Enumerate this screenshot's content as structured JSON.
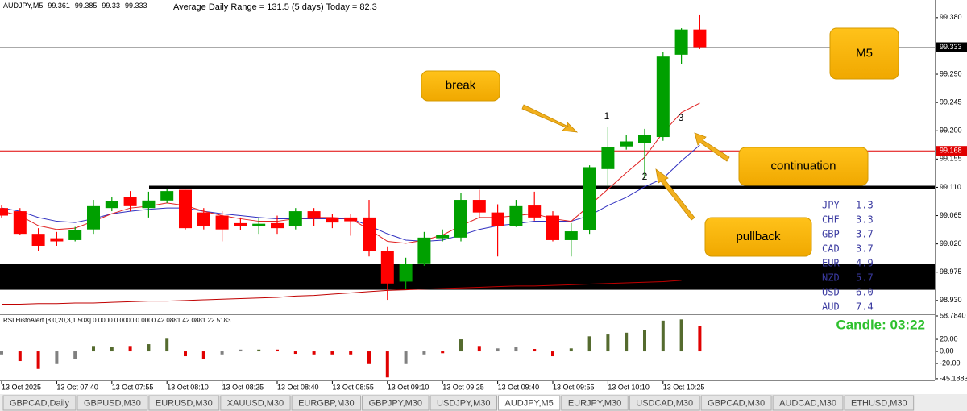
{
  "chart_data": {
    "type": "candlestick",
    "symbol": "AUDJPY,M5",
    "info": "Average Daily Range = 131.5 (5 days)    Today = 82.3",
    "ylim": [
      98.908,
      99.408
    ],
    "yticks": [
      {
        "value": 99.38,
        "label": "99.380"
      },
      {
        "value": 99.29,
        "label": "99.290"
      },
      99.245,
      {
        "value": 99.2,
        "label": "99.200"
      },
      99.155,
      {
        "value": 99.11,
        "label": "99.110"
      },
      99.065,
      {
        "value": 99.02,
        "label": "99.020"
      },
      98.975,
      {
        "value": 98.93,
        "label": "98.930"
      }
    ],
    "up_color": "#00a000",
    "down_color": "#ff0000",
    "open": [
      99.077,
      99.072,
      99.036,
      99.029,
      99.026,
      99.043,
      99.077,
      99.094,
      99.077,
      99.089,
      99.106,
      99.07,
      99.065,
      99.053,
      99.048,
      99.053,
      99.048,
      99.072,
      99.062,
      99.062,
      99.062,
      99.008,
      98.96,
      98.989,
      99.029,
      99.03,
      99.09,
      99.07,
      99.049,
      99.081,
      99.065,
      99.026,
      99.042,
      99.139,
      99.175,
      99.18,
      99.19,
      99.321,
      99.361
    ],
    "high": [
      99.081,
      99.077,
      99.045,
      99.039,
      99.047,
      99.09,
      99.095,
      99.104,
      99.103,
      99.107,
      99.106,
      99.077,
      99.072,
      99.062,
      99.062,
      99.065,
      99.077,
      99.077,
      99.067,
      99.067,
      99.09,
      99.016,
      98.998,
      99.039,
      99.043,
      99.101,
      99.106,
      99.083,
      99.09,
      99.103,
      99.072,
      99.053,
      99.145,
      99.206,
      99.193,
      99.203,
      99.325,
      99.363,
      99.385
    ],
    "low": [
      99.062,
      99.034,
      99.008,
      99.017,
      99.024,
      99.036,
      99.072,
      99.072,
      99.062,
      99.085,
      99.043,
      99.043,
      99.024,
      99.042,
      99.036,
      99.036,
      99.043,
      99.049,
      99.045,
      99.033,
      99,
      98.931,
      98.949,
      98.985,
      99.024,
      99.024,
      99.062,
      99,
      99.047,
      99.057,
      99.024,
      99,
      99.036,
      99.111,
      99.17,
      99.124,
      99.184,
      99.306,
      99.33
    ],
    "close": [
      99.065,
      99.036,
      99.017,
      99.024,
      99.042,
      99.08,
      99.088,
      99.08,
      99.089,
      99.104,
      99.045,
      99.049,
      99.043,
      99.048,
      99.052,
      99.045,
      99.072,
      99.06,
      99.054,
      99.056,
      99.008,
      98.957,
      98.988,
      99.03,
      99.034,
      99.09,
      99.07,
      99.049,
      99.08,
      99.062,
      99.026,
      99.04,
      99.142,
      99.174,
      99.183,
      99.193,
      99.318,
      99.361,
      99.333
    ],
    "lines": [
      {
        "color": "#3030c0",
        "values": [
          99.077,
          99.072,
          99.062,
          99.056,
          99.054,
          99.06,
          99.068,
          99.072,
          99.075,
          99.077,
          99.077,
          99.072,
          99.068,
          99.065,
          99.062,
          99.06,
          99.06,
          99.06,
          99.06,
          99.06,
          99.049,
          99.036,
          99.026,
          99.024,
          99.026,
          99.034,
          99.043,
          99.049,
          99.052,
          99.056,
          99.056,
          99.056,
          99.065,
          99.081,
          99.094,
          99.111,
          99.124,
          99.152,
          99.177
        ]
      },
      {
        "color": "#e02020",
        "values": [
          99.072,
          99.065,
          99.049,
          99.043,
          99.045,
          99.056,
          99.068,
          99.077,
          99.08,
          99.085,
          99.081,
          99.072,
          99.065,
          99.06,
          99.056,
          99.056,
          99.06,
          99.062,
          99.062,
          99.06,
          99.043,
          99.024,
          99.021,
          99.026,
          99.034,
          99.049,
          99.062,
          99.062,
          99.065,
          99.068,
          99.06,
          99.056,
          99.081,
          99.107,
          99.133,
          99.158,
          99.197,
          99.229,
          99.244
        ]
      },
      {
        "color": "#c00000",
        "values": [
          98.924,
          98.924,
          98.925,
          98.925,
          98.926,
          98.926,
          98.927,
          98.928,
          98.929,
          98.929,
          98.93,
          98.931,
          98.932,
          98.933,
          98.934,
          98.935,
          98.937,
          98.938,
          98.94,
          98.942,
          98.944,
          98.946,
          98.947,
          98.948,
          98.949,
          98.95,
          98.951,
          98.952,
          98.953,
          98.953,
          98.954,
          98.955,
          98.956,
          98.957,
          98.958,
          98.959,
          98.96,
          98.962,
          null
        ]
      }
    ],
    "level_line": 99.168,
    "support_line": 99.11,
    "zone": [
      98.947,
      98.988
    ],
    "x_labels": [
      "13 Oct 2025",
      "13 Oct 07:40",
      "13 Oct 07:55",
      "13 Oct 08:10",
      "13 Oct 08:25",
      "13 Oct 08:40",
      "13 Oct 08:55",
      "13 Oct 09:10",
      "13 Oct 09:25",
      "13 Oct 09:40",
      "13 Oct 09:55",
      "13 Oct 10:10",
      "13 Oct 10:25"
    ],
    "wave_labels": [
      "1",
      "2",
      "3"
    ],
    "annotations": [
      "break",
      "M5",
      "continuation",
      "pullback"
    ],
    "timer": "Candle:  03:22",
    "indicator": {
      "label": "RSI HistoAlert [8,0,20,3,1.50X] 0.0000 0.0000 0.0000 42.0881 42.0881 22.5183",
      "ylim": [
        -48,
        58.784
      ],
      "yticks": [
        {
          "value": 58.784,
          "label": "58.7840"
        },
        {
          "value": 20,
          "label": "20.00"
        },
        {
          "value": 0,
          "label": "0.00"
        },
        {
          "value": -20,
          "label": "-20.00"
        },
        {
          "value": -45.1883,
          "label": "-45.1883"
        }
      ],
      "values": [
        -5,
        -16,
        -29,
        -21,
        -12,
        9,
        8,
        9,
        12,
        21,
        -8,
        -13,
        -5,
        3,
        3,
        3,
        -4,
        -5,
        -5,
        -5,
        -21,
        -43,
        -21,
        -5,
        -3,
        20,
        9,
        5,
        7,
        4,
        -8,
        5,
        25,
        28,
        31,
        35,
        51,
        53,
        42
      ],
      "colors": [
        "#808080",
        "#e00000",
        "#e00000",
        "#808080",
        "#808080",
        "#556b2f",
        "#556b2f",
        "#e00000",
        "#556b2f",
        "#556b2f",
        "#e00000",
        "#e00000",
        "#808080",
        "#808080",
        "#556b2f",
        "#e00000",
        "#e00000",
        "#e00000",
        "#e00000",
        "#e00000",
        "#e00000",
        "#e00000",
        "#808080",
        "#808080",
        "#e00000",
        "#556b2f",
        "#e00000",
        "#808080",
        "#808080",
        "#e00000",
        "#e00000",
        "#556b2f",
        "#556b2f",
        "#556b2f",
        "#556b2f",
        "#556b2f",
        "#556b2f",
        "#556b2f",
        "#e00000"
      ]
    }
  },
  "strength": {
    "currencies": [
      "JPY",
      "CHF",
      "GBP",
      "CAD",
      "EUR",
      "NZD",
      "USD",
      "AUD"
    ],
    "values": [
      1.3,
      3.3,
      3.7,
      3.7,
      4.9,
      5.7,
      6,
      7.4
    ],
    "value_labels": [
      "1.3",
      "3.3",
      "3.7",
      "3.7",
      "4.9",
      "5.7",
      "6.0",
      "7.4"
    ]
  },
  "tabs": [
    "GBPCAD,Daily",
    "GBPUSD,M30",
    "EURUSD,M30",
    "XAUUSD,M30",
    "EURGBP,M30",
    "GBPJPY,M30",
    "USDJPY,M30",
    "AUDJPY,M5",
    "EURJPY,M30",
    "USDCAD,M30",
    "GBPCAD,M30",
    "AUDCAD,M30",
    "ETHUSD,M30"
  ],
  "active_tab": "AUDJPY,M5"
}
